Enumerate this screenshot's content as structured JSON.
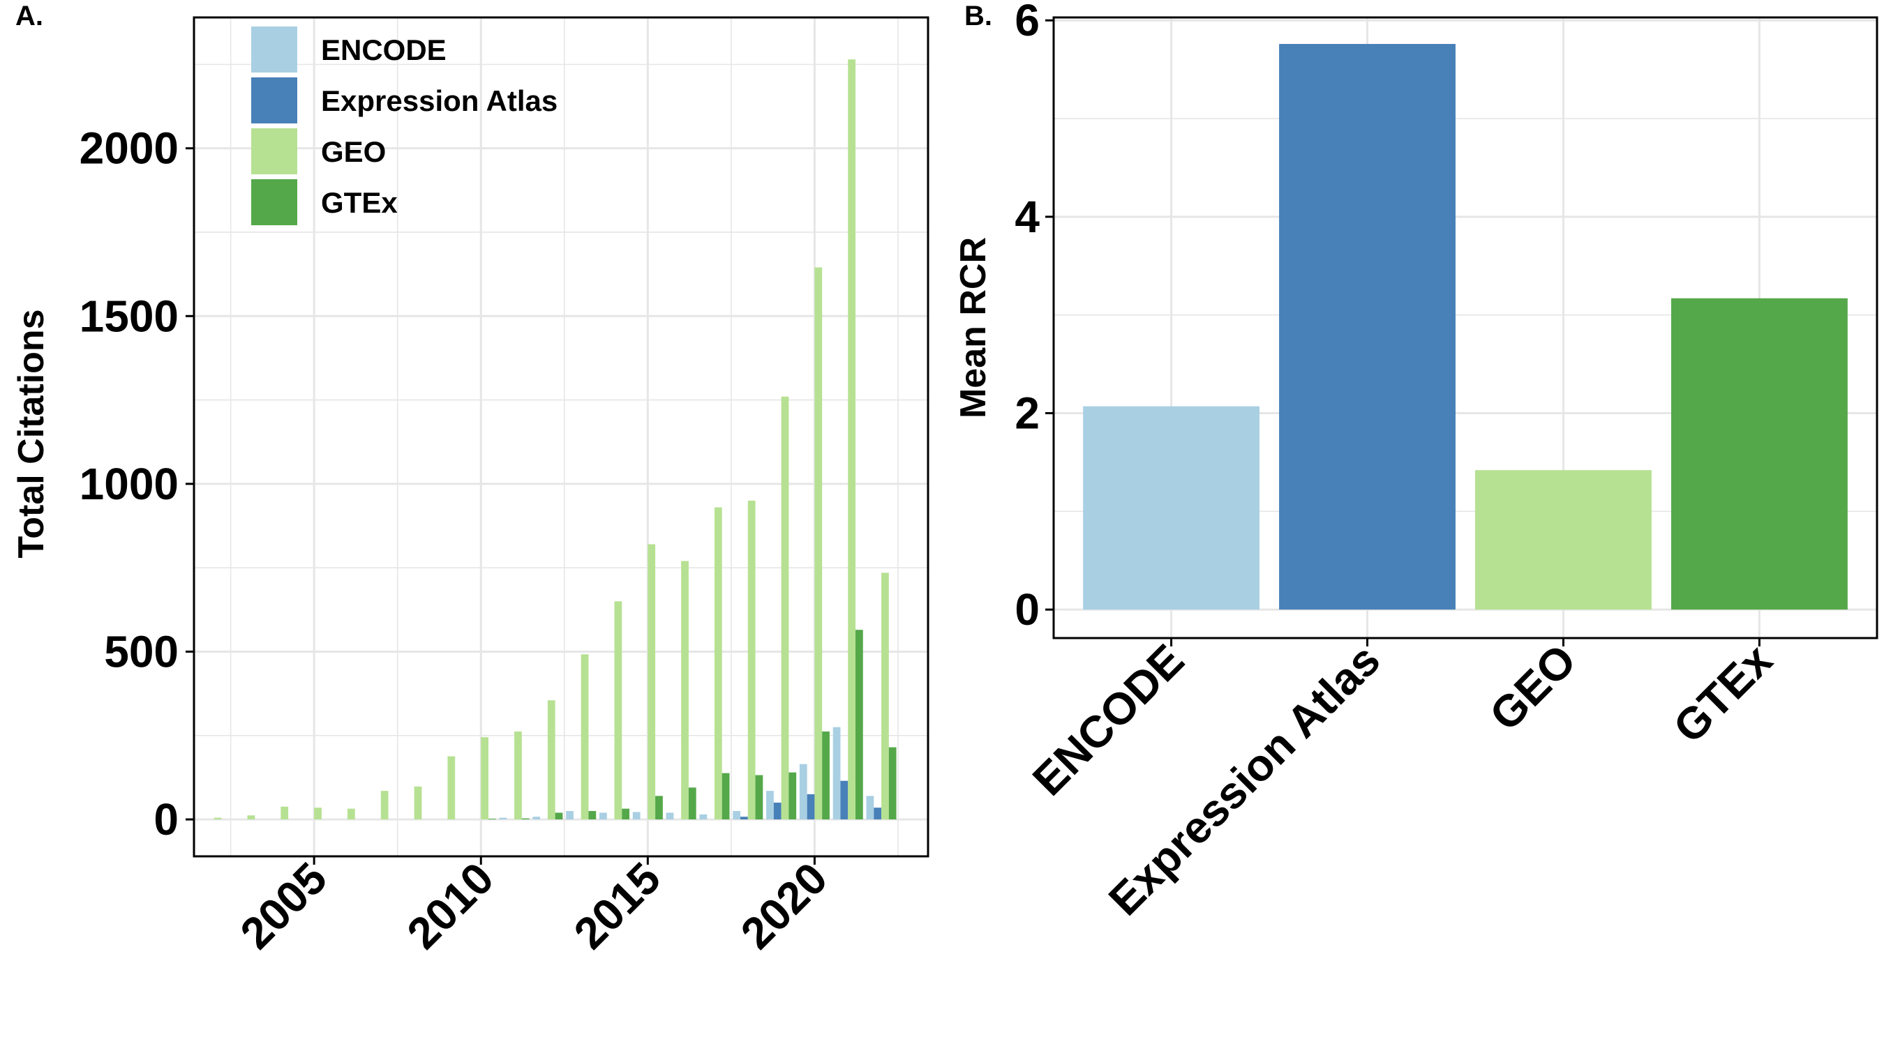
{
  "panels": {
    "a_label": "A.",
    "b_label": "B."
  },
  "chart_data": [
    {
      "type": "bar",
      "panel": "A.",
      "ylabel": "Total Citations",
      "xlabel": "",
      "x_ticks": [
        "2005",
        "2010",
        "2015",
        "2020"
      ],
      "x_tick_values": [
        2005,
        2010,
        2015,
        2020
      ],
      "y_ticks": [
        "0",
        "500",
        "1000",
        "1500",
        "2000"
      ],
      "y_tick_values": [
        0,
        500,
        1000,
        1500,
        2000
      ],
      "ylim": [
        -110,
        2390
      ],
      "xlim": [
        2001.4,
        2023.4
      ],
      "grid": true,
      "legend_position": "top-left",
      "years": [
        2002,
        2003,
        2004,
        2005,
        2006,
        2007,
        2008,
        2009,
        2010,
        2011,
        2012,
        2013,
        2014,
        2015,
        2016,
        2017,
        2018,
        2019,
        2020,
        2021,
        2022
      ],
      "series": [
        {
          "name": "ENCODE",
          "color": "#a9cfe3",
          "values": [
            0,
            0,
            0,
            0,
            0,
            0,
            0,
            0,
            0,
            5,
            8,
            25,
            20,
            22,
            20,
            15,
            25,
            85,
            165,
            275,
            70
          ]
        },
        {
          "name": "Expression Atlas",
          "color": "#4880b8",
          "values": [
            0,
            0,
            0,
            0,
            0,
            0,
            0,
            0,
            0,
            0,
            0,
            0,
            0,
            0,
            0,
            0,
            8,
            50,
            75,
            115,
            35
          ]
        },
        {
          "name": "GEO",
          "color": "#b6e192",
          "values": [
            5,
            12,
            38,
            35,
            32,
            85,
            98,
            188,
            245,
            262,
            355,
            492,
            650,
            820,
            770,
            930,
            950,
            1260,
            1645,
            2265,
            735
          ]
        },
        {
          "name": "GTEx",
          "color": "#54a849",
          "values": [
            0,
            0,
            0,
            0,
            0,
            0,
            0,
            0,
            2,
            3,
            20,
            25,
            32,
            70,
            95,
            138,
            132,
            140,
            262,
            565,
            215
          ]
        }
      ]
    },
    {
      "type": "bar",
      "panel": "B.",
      "ylabel": "Mean RCR",
      "xlabel": "",
      "categories": [
        "ENCODE",
        "Expression Atlas",
        "GEO",
        "GTEx"
      ],
      "values": [
        2.07,
        5.76,
        1.42,
        3.17
      ],
      "colors": [
        "#a9cfe3",
        "#4880b8",
        "#b6e192",
        "#54a849"
      ],
      "y_ticks": [
        "0",
        "2",
        "4",
        "6"
      ],
      "y_tick_values": [
        0,
        2,
        4,
        6
      ],
      "ylim": [
        -0.29,
        6.03
      ],
      "grid": true,
      "legend_position": "none"
    }
  ]
}
